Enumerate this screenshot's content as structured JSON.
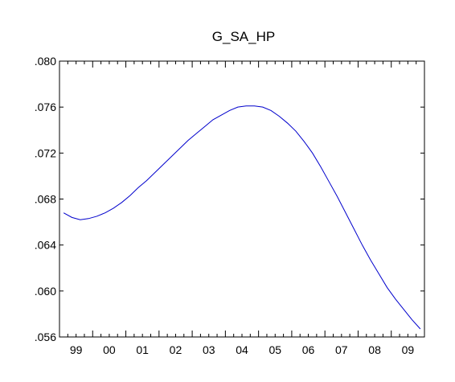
{
  "chart_data": {
    "type": "line",
    "title": "G_SA_HP",
    "xlabel": "",
    "ylabel": "",
    "xlim": [
      1999.0,
      2010.0
    ],
    "ylim": [
      0.056,
      0.08
    ],
    "y_ticks": [
      0.056,
      0.06,
      0.064,
      0.068,
      0.072,
      0.076,
      0.08
    ],
    "y_tick_labels": [
      ".056",
      ".060",
      ".064",
      ".068",
      ".072",
      ".076",
      ".080"
    ],
    "x_tick_labels": [
      "99",
      "00",
      "01",
      "02",
      "03",
      "04",
      "05",
      "06",
      "07",
      "08",
      "09"
    ],
    "x_tick_years": [
      1999,
      2000,
      2001,
      2002,
      2003,
      2004,
      2005,
      2006,
      2007,
      2008,
      2009
    ],
    "grid": false,
    "legend": "none",
    "series": [
      {
        "color": "#0000cc",
        "x": [
          "1999Q1",
          "1999Q2",
          "1999Q3",
          "1999Q4",
          "2000Q1",
          "2000Q2",
          "2000Q3",
          "2000Q4",
          "2001Q1",
          "2001Q2",
          "2001Q3",
          "2001Q4",
          "2002Q1",
          "2002Q2",
          "2002Q3",
          "2002Q4",
          "2003Q1",
          "2003Q2",
          "2003Q3",
          "2003Q4",
          "2004Q1",
          "2004Q2",
          "2004Q3",
          "2004Q4",
          "2005Q1",
          "2005Q2",
          "2005Q3",
          "2005Q4",
          "2006Q1",
          "2006Q2",
          "2006Q3",
          "2006Q4",
          "2007Q1",
          "2007Q2",
          "2007Q3",
          "2007Q4",
          "2008Q1",
          "2008Q2",
          "2008Q3",
          "2008Q4",
          "2009Q1",
          "2009Q2",
          "2009Q3",
          "2009Q4"
        ],
        "values": [
          0.0668,
          0.0664,
          0.0662,
          0.0663,
          0.0665,
          0.0668,
          0.0672,
          0.0677,
          0.0683,
          0.069,
          0.0696,
          0.0703,
          0.071,
          0.0717,
          0.0724,
          0.0731,
          0.0737,
          0.0743,
          0.0749,
          0.0753,
          0.0757,
          0.076,
          0.0761,
          0.0761,
          0.076,
          0.0757,
          0.0752,
          0.0746,
          0.0739,
          0.073,
          0.072,
          0.0708,
          0.0695,
          0.0682,
          0.0668,
          0.0654,
          0.064,
          0.0627,
          0.0615,
          0.0603,
          0.0593,
          0.0584,
          0.0575,
          0.0567
        ]
      }
    ]
  }
}
